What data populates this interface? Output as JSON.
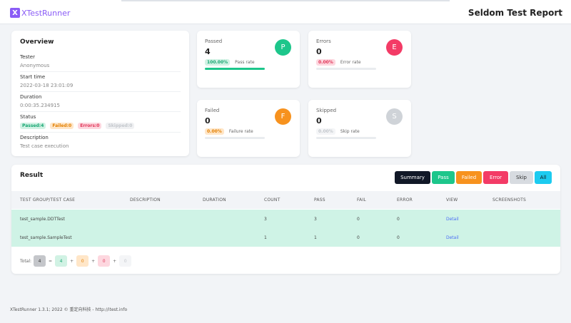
{
  "header": {
    "logo_letter": "X",
    "logo_text": "XTestRunner",
    "report_title": "Seldom Test Report"
  },
  "overview": {
    "title": "Overview",
    "tester_label": "Tester",
    "tester_value": "Anonymous",
    "start_label": "Start time",
    "start_value": "2022-03-18 23:01:09",
    "duration_label": "Duration",
    "duration_value": "0:00:35.234915",
    "status_label": "Status",
    "status_passed": "Passed:4",
    "status_failed": "Failed:0",
    "status_errors": "Errors:0",
    "status_skipped": "Skipped:0",
    "description_label": "Description",
    "description_value": "Test case execution"
  },
  "stats": {
    "passed": {
      "label": "Passed",
      "value": "4",
      "icon": "P",
      "rate": "100.00%",
      "rate_label": "Pass rate",
      "rate_fraction": 1.0,
      "color": "#1dc68b"
    },
    "errors": {
      "label": "Errors",
      "value": "0",
      "icon": "E",
      "rate": "0.00%",
      "rate_label": "Error rate",
      "rate_fraction": 0.0,
      "color": "#f33b66"
    },
    "failed": {
      "label": "Failed",
      "value": "0",
      "icon": "F",
      "rate": "0.00%",
      "rate_label": "Failure rate",
      "rate_fraction": 0.0,
      "color": "#f7921e"
    },
    "skipped": {
      "label": "Skipped",
      "value": "0",
      "icon": "S",
      "rate": "0.00%",
      "rate_label": "Skip rate",
      "rate_fraction": 0.0,
      "color": "#cfd3d8"
    }
  },
  "result": {
    "title": "Result",
    "filters": [
      "Summary",
      "Pass",
      "Failed",
      "Error",
      "Skip",
      "All"
    ],
    "columns": [
      "TEST GROUP/TEST CASE",
      "DESCRIPTION",
      "DURATION",
      "COUNT",
      "PASS",
      "FAIL",
      "ERROR",
      "VIEW",
      "SCREENSHOTS"
    ],
    "rows": [
      {
        "name": "test_sample.DDTTest",
        "description": "",
        "duration": "",
        "count": "3",
        "pass": "3",
        "fail": "0",
        "error": "0",
        "view": "Detail",
        "screenshots": ""
      },
      {
        "name": "test_sample.SampleTest",
        "description": "",
        "duration": "",
        "count": "1",
        "pass": "1",
        "fail": "0",
        "error": "0",
        "view": "Detail",
        "screenshots": ""
      }
    ],
    "total_label": "Total:",
    "total_all": "4",
    "total_pass": "4",
    "total_fail": "0",
    "total_error": "0",
    "total_skip": "0",
    "eq": "=",
    "plus": "+"
  },
  "footer": {
    "text": "XTestRunner 1.3.1; 2022 © 重定向科技 - http://itest.info"
  }
}
